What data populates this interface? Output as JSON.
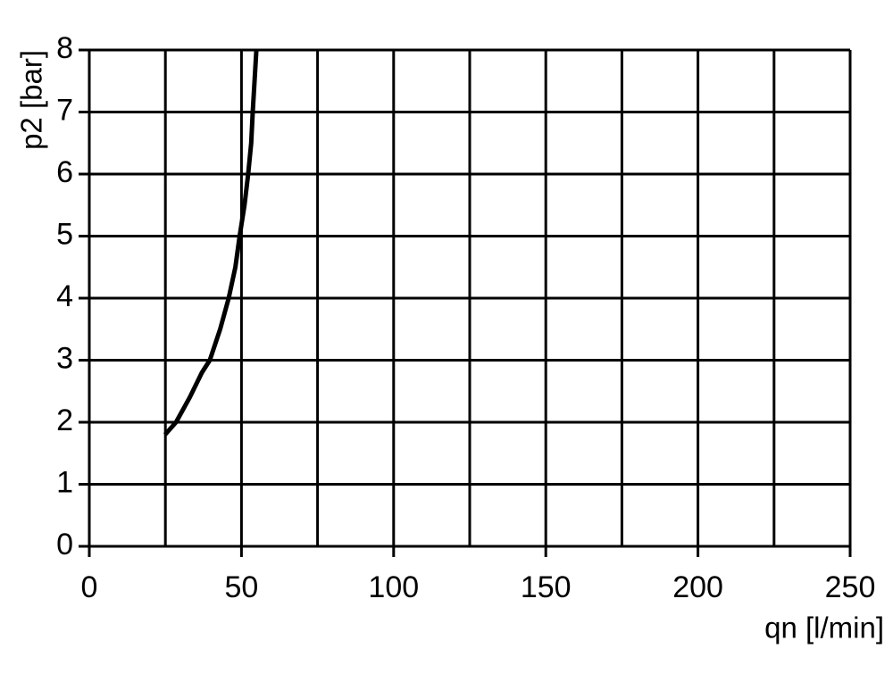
{
  "chart_data": {
    "type": "line",
    "xlabel": "qn [l/min]",
    "ylabel": "p2 [bar]",
    "x": [
      24.9,
      28.5,
      33,
      37,
      39.6,
      43,
      45.8,
      48,
      49.4,
      51,
      52.2,
      53.2,
      53.7,
      54.3,
      54.9
    ],
    "series": [
      {
        "color": "#000000",
        "values": [
          1.8,
          2.0,
          2.4,
          2.8,
          3.0,
          3.5,
          4.0,
          4.5,
          5.0,
          5.5,
          6.0,
          6.5,
          7.0,
          7.5,
          8.0
        ]
      }
    ],
    "xlim": [
      0,
      250
    ],
    "ylim": [
      0,
      8
    ],
    "xticks": [
      0,
      50,
      100,
      150,
      200,
      250
    ],
    "xminor": [
      25,
      75,
      125,
      175,
      225
    ],
    "yticks": [
      0,
      1,
      2,
      3,
      4,
      5,
      6,
      7,
      8
    ],
    "grid": true
  }
}
